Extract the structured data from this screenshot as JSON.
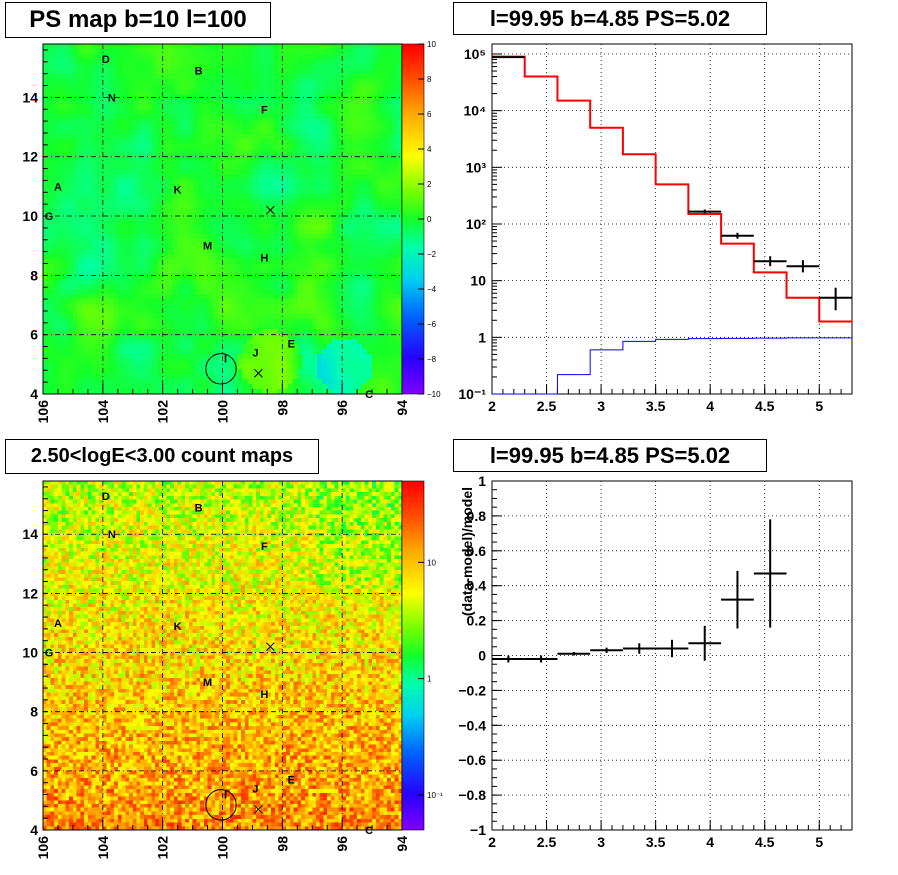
{
  "titles": {
    "ps_map": "PS map b=10 l=100",
    "spectrum": "l=99.95 b=4.85 PS=5.02",
    "count_map": "2.50<logE<3.00 count maps",
    "residual": "l=99.95 b=4.85 PS=5.02"
  },
  "chart_data": [
    {
      "id": "ps_map",
      "type": "heatmap",
      "title": "PS map b=10 l=100",
      "x_ticks": [
        "106",
        "104",
        "102",
        "100",
        "98",
        "96",
        "94"
      ],
      "y_ticks": [
        "4",
        "6",
        "8",
        "10",
        "12",
        "14"
      ],
      "xlim": [
        106,
        94
      ],
      "ylim": [
        4,
        15.8
      ],
      "colorbar_ticks": [
        "10",
        "8",
        "6",
        "4",
        "2",
        "0",
        "−2",
        "−4",
        "−6",
        "−8",
        "−10"
      ],
      "colorbar_range": [
        -10,
        10
      ],
      "grid": true,
      "labels": [
        {
          "text": "D",
          "l": 103.9,
          "b": 15.3
        },
        {
          "text": "B",
          "l": 100.8,
          "b": 14.9
        },
        {
          "text": "N",
          "l": 103.7,
          "b": 14.0
        },
        {
          "text": "F",
          "l": 98.6,
          "b": 13.6
        },
        {
          "text": "A",
          "l": 105.5,
          "b": 11.0
        },
        {
          "text": "K",
          "l": 101.5,
          "b": 10.9
        },
        {
          "text": "G",
          "l": 105.8,
          "b": 10.0
        },
        {
          "text": "M",
          "l": 100.5,
          "b": 9.0
        },
        {
          "text": "H",
          "l": 98.6,
          "b": 8.6
        },
        {
          "text": "E",
          "l": 97.7,
          "b": 5.7
        },
        {
          "text": "J",
          "l": 98.9,
          "b": 5.4
        },
        {
          "text": "I",
          "l": 99.9,
          "b": 5.2
        },
        {
          "text": "C",
          "l": 95.1,
          "b": 4.0
        }
      ],
      "markers": [
        {
          "type": "x",
          "l": 98.4,
          "b": 10.2
        },
        {
          "type": "x",
          "l": 98.8,
          "b": 4.7
        },
        {
          "type": "circle",
          "l": 100.05,
          "b": 4.85,
          "r": 0.35
        }
      ]
    },
    {
      "id": "spectrum",
      "type": "line",
      "title": "l=99.95 b=4.85 PS=5.02",
      "x_ticks": [
        "2",
        "2.5",
        "3",
        "3.5",
        "4",
        "4.5",
        "5"
      ],
      "y_ticks": [
        "10⁻¹",
        "1",
        "10",
        "10²",
        "10³",
        "10⁴",
        "10⁵"
      ],
      "xlim": [
        2,
        5.3
      ],
      "ylim": [
        0.1,
        150000
      ],
      "log_y": true,
      "grid": true,
      "series": [
        {
          "color": "#ff0000",
          "style": "step",
          "bins": [
            [
              2.0,
              2.3,
              90000
            ],
            [
              2.3,
              2.6,
              40000
            ],
            [
              2.6,
              2.9,
              15000
            ],
            [
              2.9,
              3.2,
              5000
            ],
            [
              3.2,
              3.5,
              1700
            ],
            [
              3.5,
              3.8,
              500
            ],
            [
              3.8,
              4.1,
              150
            ],
            [
              4.1,
              4.4,
              45
            ],
            [
              4.4,
              4.7,
              14
            ],
            [
              4.7,
              5.0,
              5
            ],
            [
              5.0,
              5.3,
              1.9
            ]
          ]
        },
        {
          "color": "#0000ff",
          "style": "step",
          "bins": [
            [
              2.0,
              2.6,
              0.1
            ],
            [
              2.6,
              2.9,
              0.22
            ],
            [
              2.9,
              3.2,
              0.6
            ],
            [
              3.2,
              3.5,
              0.85
            ],
            [
              3.5,
              3.8,
              0.92
            ],
            [
              3.8,
              4.1,
              0.95
            ],
            [
              4.1,
              4.4,
              0.96
            ],
            [
              4.4,
              4.7,
              0.97
            ],
            [
              4.7,
              5.0,
              0.98
            ],
            [
              5.0,
              5.3,
              0.98
            ]
          ]
        },
        {
          "color": "#000000",
          "style": "points",
          "points": [
            {
              "x": 2.15,
              "xerr": 0.15,
              "y": 88000,
              "ylo": 86000,
              "yhi": 90000
            },
            {
              "x": 3.95,
              "xerr": 0.15,
              "y": 165,
              "ylo": 150,
              "yhi": 180
            },
            {
              "x": 4.25,
              "xerr": 0.15,
              "y": 62,
              "ylo": 55,
              "yhi": 70
            },
            {
              "x": 4.55,
              "xerr": 0.15,
              "y": 22,
              "ylo": 18,
              "yhi": 27
            },
            {
              "x": 4.85,
              "xerr": 0.15,
              "y": 18,
              "ylo": 14,
              "yhi": 23
            },
            {
              "x": 5.15,
              "xerr": 0.15,
              "y": 5,
              "ylo": 3,
              "yhi": 7.5
            }
          ]
        }
      ]
    },
    {
      "id": "count_map",
      "type": "heatmap",
      "title": "2.50<logE<3.00 count maps",
      "x_ticks": [
        "106",
        "104",
        "102",
        "100",
        "98",
        "96",
        "94"
      ],
      "y_ticks": [
        "4",
        "6",
        "8",
        "10",
        "12",
        "14"
      ],
      "xlim": [
        106,
        94
      ],
      "ylim": [
        4,
        15.8
      ],
      "colorbar_ticks": [
        "10",
        "1",
        "10⁻¹"
      ],
      "colorbar_log": true,
      "colorbar_range": [
        0.05,
        50
      ],
      "grid": true,
      "labels": [
        {
          "text": "D",
          "l": 103.9,
          "b": 15.3
        },
        {
          "text": "B",
          "l": 100.8,
          "b": 14.9
        },
        {
          "text": "N",
          "l": 103.7,
          "b": 14.0
        },
        {
          "text": "F",
          "l": 98.6,
          "b": 13.6
        },
        {
          "text": "A",
          "l": 105.5,
          "b": 11.0
        },
        {
          "text": "K",
          "l": 101.5,
          "b": 10.9
        },
        {
          "text": "G",
          "l": 105.8,
          "b": 10.0
        },
        {
          "text": "M",
          "l": 100.5,
          "b": 9.0
        },
        {
          "text": "H",
          "l": 98.6,
          "b": 8.6
        },
        {
          "text": "E",
          "l": 97.7,
          "b": 5.7
        },
        {
          "text": "J",
          "l": 98.9,
          "b": 5.4
        },
        {
          "text": "I",
          "l": 99.9,
          "b": 5.2
        },
        {
          "text": "C",
          "l": 95.1,
          "b": 4.0
        }
      ],
      "markers": [
        {
          "type": "x",
          "l": 98.4,
          "b": 10.2
        },
        {
          "type": "x",
          "l": 98.8,
          "b": 4.7
        },
        {
          "type": "circle",
          "l": 100.05,
          "b": 4.85,
          "r": 0.35
        }
      ]
    },
    {
      "id": "residual",
      "type": "scatter",
      "title": "l=99.95 b=4.85 PS=5.02",
      "ylabel": "(data-model)/model",
      "x_ticks": [
        "2",
        "2.5",
        "3",
        "3.5",
        "4",
        "4.5",
        "5"
      ],
      "y_ticks": [
        "−1",
        "−0.8",
        "−0.6",
        "−0.4",
        "−0.2",
        "0",
        "0.2",
        "0.4",
        "0.6",
        "0.8",
        "1"
      ],
      "xlim": [
        2,
        5.3
      ],
      "ylim": [
        -1,
        1
      ],
      "grid": true,
      "series": [
        {
          "color": "#000000",
          "points": [
            {
              "x": 2.15,
              "xerr": 0.15,
              "y": -0.02,
              "yerr": 0.02
            },
            {
              "x": 2.45,
              "xerr": 0.15,
              "y": -0.02,
              "yerr": 0.02
            },
            {
              "x": 2.75,
              "xerr": 0.15,
              "y": 0.01,
              "yerr": 0.01
            },
            {
              "x": 3.05,
              "xerr": 0.15,
              "y": 0.03,
              "yerr": 0.015
            },
            {
              "x": 3.35,
              "xerr": 0.15,
              "y": 0.04,
              "yerr": 0.03
            },
            {
              "x": 3.65,
              "xerr": 0.15,
              "y": 0.04,
              "yerr": 0.05
            },
            {
              "x": 3.95,
              "xerr": 0.15,
              "y": 0.07,
              "yerr": 0.1
            },
            {
              "x": 4.25,
              "xerr": 0.15,
              "y": 0.32,
              "yerr": 0.165
            },
            {
              "x": 4.55,
              "xerr": 0.15,
              "y": 0.47,
              "yerr": 0.31
            }
          ]
        }
      ]
    }
  ]
}
